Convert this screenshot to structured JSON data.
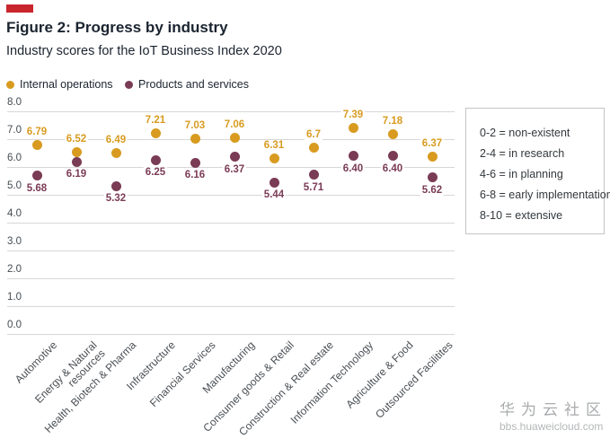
{
  "header": {
    "figure_title": "Figure 2: Progress by industry",
    "subtitle": "Industry scores for the IoT Business Index 2020",
    "accent_color": "#c9252d"
  },
  "legend": {
    "series": [
      {
        "label": "Internal operations",
        "color": "#d89b20"
      },
      {
        "label": "Products and services",
        "color": "#7a3b55"
      }
    ]
  },
  "scale_legend": {
    "items": [
      "0-2 = non-existent",
      "2-4 = in research",
      "4-6 = in planning",
      "6-8 = early implementation",
      "8-10 = extensive"
    ]
  },
  "chart_data": {
    "type": "scatter",
    "title": "Figure 2: Progress by industry",
    "subtitle": "Industry scores for the IoT Business Index 2020",
    "categories": [
      "Automotive",
      "Energy & Natural\nresources",
      "Health, Biotech & Pharma",
      "Infrastructure",
      "Financial Services",
      "Manufacturing",
      "Consumer goods & Retail",
      "Construction & Real estate",
      "Information Technology",
      "Agriculture & Food",
      "Outsourced Facilitites"
    ],
    "series": [
      {
        "name": "Internal operations",
        "color": "#d89b20",
        "values": [
          6.79,
          6.52,
          6.49,
          7.21,
          7.03,
          7.06,
          6.31,
          6.7,
          7.39,
          7.18,
          6.37
        ],
        "labels": [
          "6.79",
          "6.52",
          "6.49",
          "7.21",
          "7.03",
          "7.06",
          "6.31",
          "6.7",
          "7.39",
          "7.18",
          "6.37"
        ],
        "label_position": "above"
      },
      {
        "name": "Products and services",
        "color": "#7a3b55",
        "values": [
          5.68,
          6.19,
          5.32,
          6.25,
          6.16,
          6.37,
          5.44,
          5.71,
          6.4,
          6.4,
          5.62
        ],
        "labels": [
          "5.68",
          "6.19",
          "5.32",
          "6.25",
          "6.16",
          "6.37",
          "5.44",
          "5.71",
          "6.40",
          "6.40",
          "5.62"
        ],
        "label_position": "below"
      }
    ],
    "ylim": [
      0,
      8
    ],
    "ytick_labels": [
      "0.0",
      "1.0",
      "2.0",
      "3.0",
      "4.0",
      "5.0",
      "6.0",
      "7.0",
      "8.0"
    ],
    "grid": true,
    "legend_position": "top-left"
  },
  "watermark": {
    "brand": "华为云社区",
    "url": "bbs.huaweicloud.com"
  }
}
